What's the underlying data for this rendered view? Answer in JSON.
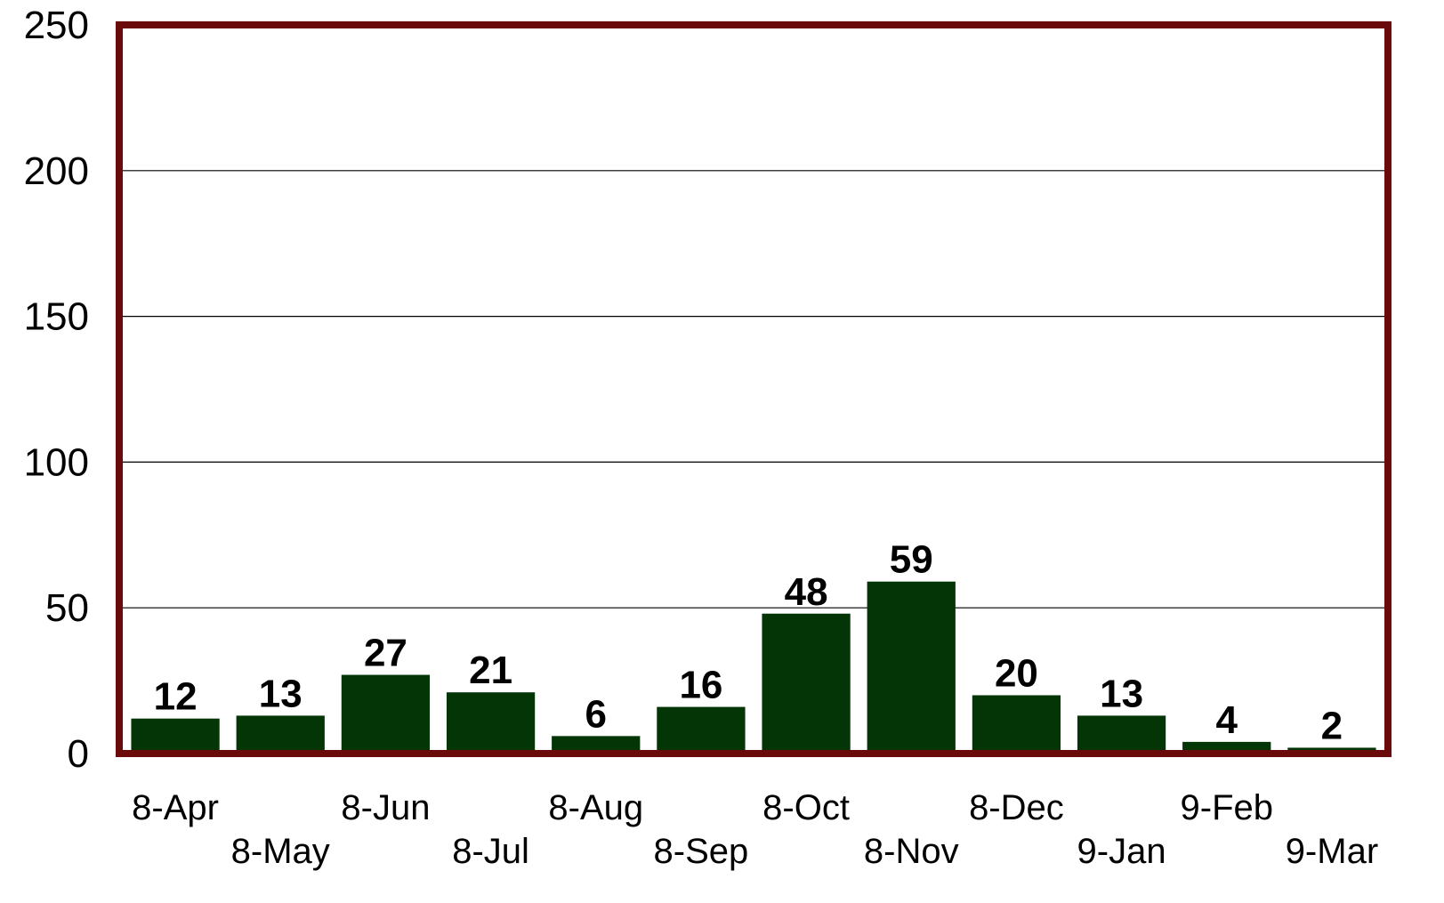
{
  "chart_data": {
    "type": "bar",
    "categories": [
      "8-Apr",
      "8-May",
      "8-Jun",
      "8-Jul",
      "8-Aug",
      "8-Sep",
      "8-Oct",
      "8-Nov",
      "8-Dec",
      "9-Jan",
      "9-Feb",
      "9-Mar"
    ],
    "values": [
      12,
      13,
      27,
      21,
      6,
      16,
      48,
      59,
      20,
      13,
      4,
      2
    ],
    "ylim": [
      0,
      250
    ],
    "yticks": [
      0,
      50,
      100,
      150,
      200,
      250
    ],
    "ytick_labels": [
      "0",
      "50",
      "100",
      "150",
      "200",
      "250"
    ],
    "grid": true,
    "legend": false,
    "data_labels": true,
    "x_labels_staggered": true,
    "colors": {
      "bar": "#033506",
      "frame": "#6b0a0a",
      "grid": "#000000"
    }
  }
}
